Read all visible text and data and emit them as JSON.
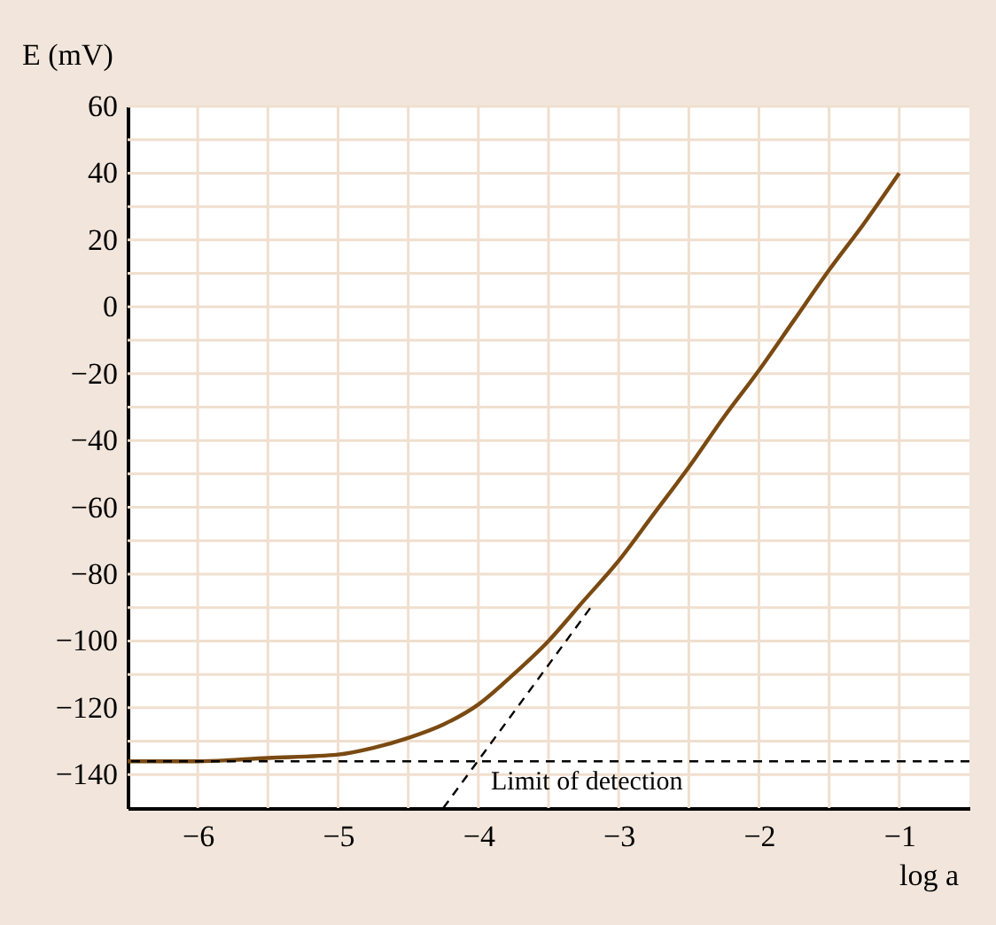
{
  "chart_data": {
    "type": "line",
    "xlabel": "log a",
    "ylabel": "E (mV)",
    "xlim": [
      -6.5,
      -0.5
    ],
    "ylim": [
      -150,
      60
    ],
    "xticks": [
      -6,
      {
        "value": -5.5,
        "label": null
      },
      -5,
      {
        "value": -4.5,
        "label": null
      },
      -4,
      {
        "value": -3.5,
        "label": null
      },
      -3,
      {
        "value": -2.5,
        "label": null
      },
      -2,
      {
        "value": -1.5,
        "label": null
      },
      -1
    ],
    "yticks": [
      -140,
      {
        "value": -130,
        "label": null
      },
      -120,
      {
        "value": -110,
        "label": null
      },
      -100,
      {
        "value": -90,
        "label": null
      },
      -80,
      {
        "value": -70,
        "label": null
      },
      -60,
      {
        "value": -50,
        "label": null
      },
      -40,
      {
        "value": -30,
        "label": null
      },
      -20,
      {
        "value": -10,
        "label": null
      },
      0,
      {
        "value": 10,
        "label": null
      },
      20,
      {
        "value": 30,
        "label": null
      },
      40,
      {
        "value": 50,
        "label": null
      },
      60
    ],
    "grid": true,
    "marker": "none",
    "series": [
      {
        "color": "#7a4a12",
        "line_style": "solid",
        "x": [
          -6.5,
          -6,
          -5.5,
          -5,
          -4.75,
          -4.5,
          -4.25,
          -4,
          -3.75,
          -3.5,
          -3.25,
          -3,
          -2.75,
          -2.5,
          -2.25,
          -2,
          -1.75,
          -1.5,
          -1.25,
          -1
        ],
        "values": [
          -136,
          -136,
          -135,
          -134,
          -132,
          -129,
          -125,
          -119,
          -110,
          -100,
          -88,
          -76,
          -62,
          -48,
          -33,
          -19,
          -4,
          11,
          25,
          40
        ]
      },
      {
        "color": "#000000",
        "line_style": "dashed",
        "x": [
          -4.25,
          -3.2
        ],
        "values": [
          -150,
          -90
        ]
      }
    ],
    "ref_lines": [
      {
        "axis": "y",
        "value": -136,
        "label": "Limit of detection",
        "color": "#000000",
        "line_style": "dashed"
      }
    ]
  }
}
